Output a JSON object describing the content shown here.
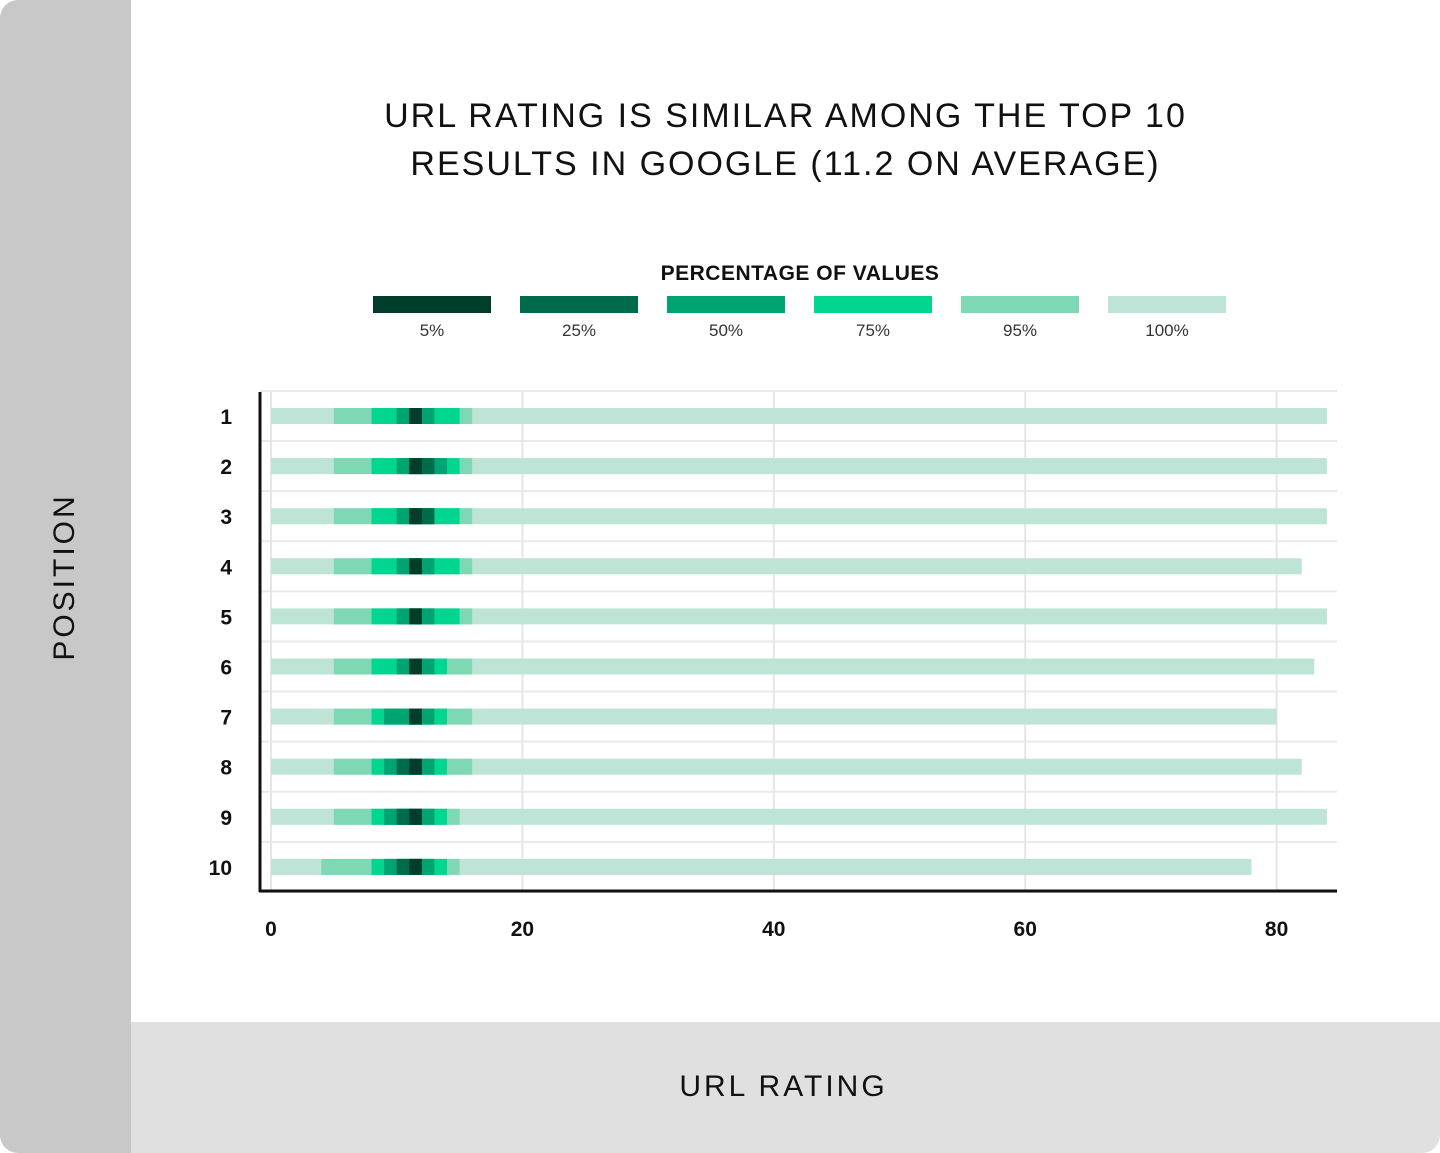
{
  "title_lines": [
    "URL RATING IS SIMILAR AMONG THE TOP 10",
    "RESULTS IN GOOGLE (11.2 ON AVERAGE)"
  ],
  "chart_data": {
    "type": "bar",
    "title": "URL RATING IS SIMILAR AMONG THE TOP 10 RESULTS IN GOOGLE (11.2 ON AVERAGE)",
    "xlabel": "URL RATING",
    "ylabel": "POSITION",
    "xlim": [
      0,
      85
    ],
    "xticks": [
      "0",
      "20",
      "40",
      "60",
      "80"
    ],
    "xtick_values": [
      0,
      20,
      40,
      60,
      80
    ],
    "grid": true,
    "legend": {
      "title": "PERCENTAGE OF VALUES",
      "placement": "top",
      "entries": [
        {
          "label": "5%",
          "color": "#003d2b"
        },
        {
          "label": "25%",
          "color": "#006b4c"
        },
        {
          "label": "50%",
          "color": "#00a472"
        },
        {
          "label": "75%",
          "color": "#00d68f"
        },
        {
          "label": "95%",
          "color": "#7fd8b4"
        },
        {
          "label": "100%",
          "color": "#bde4d5"
        }
      ]
    },
    "categories": [
      "1",
      "2",
      "3",
      "4",
      "5",
      "6",
      "7",
      "8",
      "9",
      "10"
    ],
    "series": [
      {
        "name": "100%",
        "ranges": [
          [
            0,
            84
          ],
          [
            0,
            84
          ],
          [
            0,
            84
          ],
          [
            0,
            82
          ],
          [
            0,
            84
          ],
          [
            0,
            83
          ],
          [
            0,
            80
          ],
          [
            0,
            82
          ],
          [
            0,
            84
          ],
          [
            0,
            78
          ]
        ]
      },
      {
        "name": "95%",
        "ranges": [
          [
            5,
            16
          ],
          [
            5,
            16
          ],
          [
            5,
            16
          ],
          [
            5,
            16
          ],
          [
            5,
            16
          ],
          [
            5,
            16
          ],
          [
            5,
            16
          ],
          [
            5,
            16
          ],
          [
            5,
            15
          ],
          [
            4,
            15
          ]
        ]
      },
      {
        "name": "75%",
        "ranges": [
          [
            8,
            15
          ],
          [
            8,
            15
          ],
          [
            8,
            15
          ],
          [
            8,
            15
          ],
          [
            8,
            15
          ],
          [
            8,
            14
          ],
          [
            8,
            14
          ],
          [
            8,
            14
          ],
          [
            8,
            14
          ],
          [
            8,
            14
          ]
        ]
      },
      {
        "name": "50%",
        "ranges": [
          [
            10,
            13
          ],
          [
            10,
            14
          ],
          [
            10,
            13
          ],
          [
            10,
            13
          ],
          [
            10,
            13
          ],
          [
            10,
            13
          ],
          [
            9,
            13
          ],
          [
            9,
            13
          ],
          [
            9,
            13
          ],
          [
            9,
            13
          ]
        ]
      },
      {
        "name": "25%",
        "ranges": [
          [
            11,
            12
          ],
          [
            11,
            13
          ],
          [
            11,
            13
          ],
          [
            11,
            12
          ],
          [
            11,
            12
          ],
          [
            11,
            12
          ],
          [
            11,
            12
          ],
          [
            10,
            12
          ],
          [
            10,
            12
          ],
          [
            10,
            12
          ]
        ]
      },
      {
        "name": "5%",
        "ranges": [
          [
            11,
            12
          ],
          [
            11,
            12
          ],
          [
            11,
            12
          ],
          [
            11,
            12
          ],
          [
            11,
            12
          ],
          [
            11,
            12
          ],
          [
            11,
            12
          ],
          [
            11,
            12
          ],
          [
            11,
            12
          ],
          [
            11,
            12
          ]
        ]
      }
    ]
  }
}
